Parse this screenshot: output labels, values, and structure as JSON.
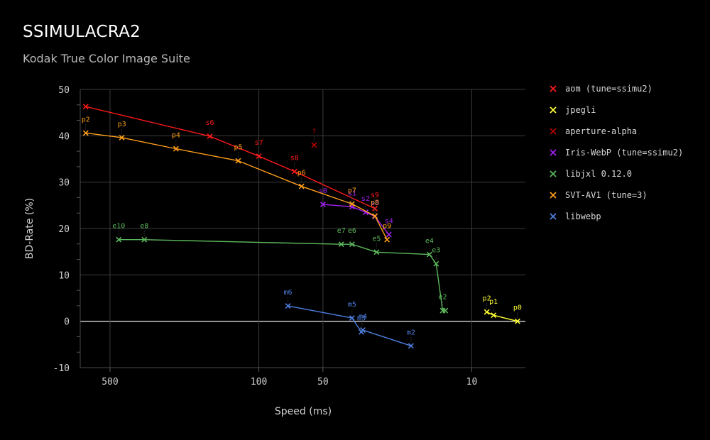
{
  "chart_data": {
    "type": "line",
    "title": "SSIMULACRA2",
    "subtitle": "Kodak True Color Image Suite",
    "xlabel": "Speed (ms)",
    "ylabel": "BD-Rate (%)",
    "x_scale": "log",
    "x_reversed": true,
    "xlim": [
      690,
      5.6
    ],
    "ylim": [
      -10,
      50
    ],
    "x_ticks": [
      {
        "value": 500,
        "label": "500"
      },
      {
        "value": 100,
        "label": "100"
      },
      {
        "value": 50,
        "label": "50"
      },
      {
        "value": 10,
        "label": "10"
      }
    ],
    "y_ticks": [
      {
        "value": 50,
        "label": "50"
      },
      {
        "value": 40,
        "label": "40"
      },
      {
        "value": 30,
        "label": "30"
      },
      {
        "value": 20,
        "label": "20"
      },
      {
        "value": 10,
        "label": "10"
      },
      {
        "value": 0,
        "label": "0"
      },
      {
        "value": -10,
        "label": "-10"
      }
    ],
    "grid": true,
    "legend_position": "right",
    "series": [
      {
        "name": "aom (tune=ssimu2)",
        "color": "#ff1a1a",
        "points": [
          {
            "x": 650,
            "y": 46.3,
            "label": ""
          },
          {
            "x": 170,
            "y": 39.9,
            "label": "s6"
          },
          {
            "x": 100,
            "y": 35.6,
            "label": "s7"
          },
          {
            "x": 68,
            "y": 32.3,
            "label": "s8"
          },
          {
            "x": 28.5,
            "y": 24.3,
            "label": "s9"
          }
        ]
      },
      {
        "name": "jpegli",
        "color": "#ffff33",
        "points": [
          {
            "x": 8.5,
            "y": 2.0,
            "label": "p2"
          },
          {
            "x": 7.9,
            "y": 1.3,
            "label": "p1"
          },
          {
            "x": 6.1,
            "y": 0.0,
            "label": "p0"
          }
        ]
      },
      {
        "name": "aperture-alpha",
        "color": "#b30000",
        "points": [
          {
            "x": 55,
            "y": 38.0,
            "label": "?"
          }
        ]
      },
      {
        "name": "Iris-WebP (tune=ssimu2)",
        "color": "#a020f0",
        "points": [
          {
            "x": 50,
            "y": 25.2,
            "label": "s0"
          },
          {
            "x": 36.5,
            "y": 24.7,
            "label": "s1"
          },
          {
            "x": 31.5,
            "y": 23.5,
            "label": "s2"
          },
          {
            "x": 28.5,
            "y": 22.6,
            "label": "s3"
          },
          {
            "x": 24.5,
            "y": 18.7,
            "label": "s4"
          }
        ]
      },
      {
        "name": "libjxl 0.12.0",
        "color": "#5cb85c",
        "points": [
          {
            "x": 455,
            "y": 17.6,
            "label": "e10"
          },
          {
            "x": 345,
            "y": 17.6,
            "label": "e8"
          },
          {
            "x": 41,
            "y": 16.6,
            "label": "e7"
          },
          {
            "x": 36.5,
            "y": 16.6,
            "label": "e6"
          },
          {
            "x": 28,
            "y": 14.9,
            "label": "e5"
          },
          {
            "x": 15.8,
            "y": 14.4,
            "label": "e4"
          },
          {
            "x": 14.7,
            "y": 12.4,
            "label": "e3"
          },
          {
            "x": 13.7,
            "y": 2.3,
            "label": "e2"
          },
          {
            "x": 13.3,
            "y": 2.3,
            "label": ""
          }
        ]
      },
      {
        "name": "SVT-AV1 (tune=3)",
        "color": "#ff9f1a",
        "points": [
          {
            "x": 650,
            "y": 40.6,
            "label": "p2"
          },
          {
            "x": 440,
            "y": 39.6,
            "label": "p3"
          },
          {
            "x": 245,
            "y": 37.2,
            "label": "p4"
          },
          {
            "x": 125,
            "y": 34.6,
            "label": "p5"
          },
          {
            "x": 63,
            "y": 29.1,
            "label": "p6"
          },
          {
            "x": 36.5,
            "y": 25.3,
            "label": "p7"
          },
          {
            "x": 28.5,
            "y": 22.7,
            "label": "p8"
          },
          {
            "x": 25,
            "y": 17.6,
            "label": "p9"
          }
        ]
      },
      {
        "name": "libwebp",
        "color": "#4d7fe0",
        "points": [
          {
            "x": 73,
            "y": 3.3,
            "label": "m6"
          },
          {
            "x": 36.5,
            "y": 0.7,
            "label": "m5"
          },
          {
            "x": 33,
            "y": -2.3,
            "label": "m3"
          },
          {
            "x": 32.5,
            "y": -1.9,
            "label": "m4"
          },
          {
            "x": 19.3,
            "y": -5.3,
            "label": "m2"
          }
        ]
      }
    ]
  }
}
